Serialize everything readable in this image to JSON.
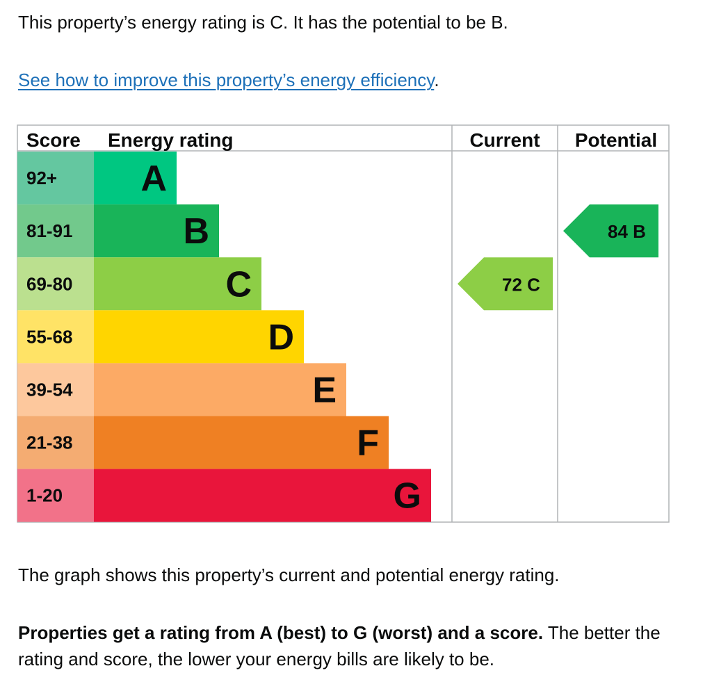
{
  "intro": "This property’s energy rating is C. It has the potential to be B.",
  "link": {
    "text": "See how to improve this property’s energy efficiency",
    "suffix": "."
  },
  "explain": "The graph shows this property’s current and potential energy rating.",
  "properties": {
    "bold": "Properties get a rating from A (best) to G (worst) and a score.",
    "rest": " The better the rating and score, the lower your energy bills are likely to be."
  },
  "chart_data": {
    "type": "table",
    "headers": {
      "score": "Score",
      "rating": "Energy rating",
      "current": "Current",
      "potential": "Potential"
    },
    "bands": [
      {
        "letter": "A",
        "range": "92+",
        "color": "#00c781",
        "score_bg": "#64c7a0"
      },
      {
        "letter": "B",
        "range": "81-91",
        "color": "#19b459",
        "score_bg": "#72c98c"
      },
      {
        "letter": "C",
        "range": "69-80",
        "color": "#8dce46",
        "score_bg": "#bbe08f"
      },
      {
        "letter": "D",
        "range": "55-68",
        "color": "#ffd500",
        "score_bg": "#ffe366"
      },
      {
        "letter": "E",
        "range": "39-54",
        "color": "#fcaa65",
        "score_bg": "#fdc89d"
      },
      {
        "letter": "F",
        "range": "21-38",
        "color": "#ef8023",
        "score_bg": "#f4ac72"
      },
      {
        "letter": "G",
        "range": "1-20",
        "color": "#e9153b",
        "score_bg": "#f27289"
      }
    ],
    "current": {
      "score": 72,
      "letter": "C",
      "label": "72  C",
      "color": "#8dce46"
    },
    "potential": {
      "score": 84,
      "letter": "B",
      "label": "84  B",
      "color": "#19b459"
    }
  }
}
